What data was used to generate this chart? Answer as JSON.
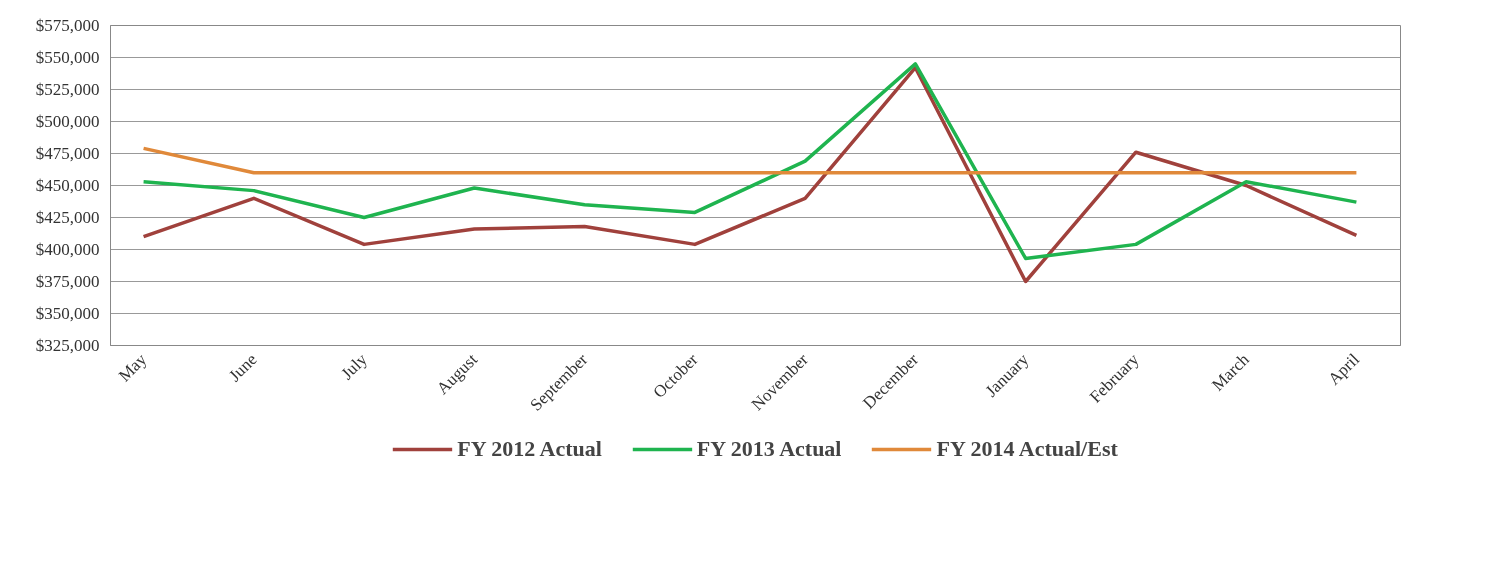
{
  "chart_data": {
    "type": "line",
    "categories": [
      "May",
      "June",
      "July",
      "August",
      "September",
      "October",
      "November",
      "December",
      "January",
      "February",
      "March",
      "April"
    ],
    "series": [
      {
        "name": "FY 2012 Actual",
        "color": "#a0413c",
        "values": [
          410000,
          440000,
          404000,
          416000,
          418000,
          404000,
          440000,
          542000,
          375000,
          476000,
          450000,
          411000
        ]
      },
      {
        "name": "FY 2013 Actual",
        "color": "#1fb44f",
        "values": [
          453000,
          446000,
          425000,
          448000,
          435000,
          429000,
          469000,
          545000,
          393000,
          404000,
          453000,
          437000
        ]
      },
      {
        "name": "FY 2014 Actual/Est",
        "color": "#e0893a",
        "values": [
          479000,
          460000,
          460000,
          460000,
          460000,
          460000,
          460000,
          460000,
          460000,
          460000,
          460000,
          460000
        ]
      }
    ],
    "ylim": [
      325000,
      575000
    ],
    "yticks": [
      {
        "value": 325000,
        "label": "$325,000"
      },
      {
        "value": 350000,
        "label": "$350,000"
      },
      {
        "value": 375000,
        "label": "$375,000"
      },
      {
        "value": 400000,
        "label": "$400,000"
      },
      {
        "value": 425000,
        "label": "$425,000"
      },
      {
        "value": 450000,
        "label": "$450,000"
      },
      {
        "value": 475000,
        "label": "$475,000"
      },
      {
        "value": 500000,
        "label": "$500,000"
      },
      {
        "value": 525000,
        "label": "$525,000"
      },
      {
        "value": 550000,
        "label": "$550,000"
      },
      {
        "value": 575000,
        "label": "$575,000"
      }
    ],
    "grid": "y",
    "legend": "bottom",
    "marker": "none",
    "line_style": "solid"
  }
}
